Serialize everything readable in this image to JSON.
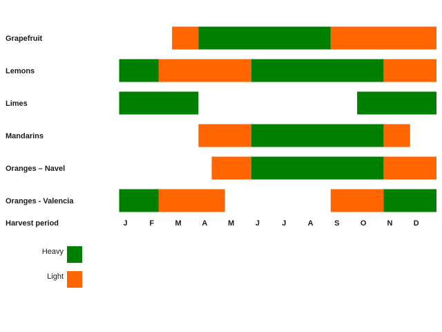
{
  "chart_data": {
    "type": "bar",
    "subtype": "gantt",
    "x_axis_label": "Harvest period",
    "months": [
      "J",
      "F",
      "M",
      "A",
      "M",
      "J",
      "J",
      "A",
      "S",
      "O",
      "N",
      "D"
    ],
    "xlim": [
      0,
      12
    ],
    "grid": false,
    "legend_position": "bottom-left",
    "legend": [
      {
        "key": "heavy",
        "label": "Heavy",
        "color": "#008000"
      },
      {
        "key": "light",
        "label": "Light",
        "color": "#ff6600"
      }
    ],
    "rows": [
      {
        "name": "Grapefruit",
        "segments": [
          {
            "start": 2.0,
            "end": 3.0,
            "level": "light"
          },
          {
            "start": 3.0,
            "end": 8.0,
            "level": "heavy"
          },
          {
            "start": 8.0,
            "end": 12.0,
            "level": "light"
          }
        ]
      },
      {
        "name": "Lemons",
        "segments": [
          {
            "start": 0.0,
            "end": 1.5,
            "level": "heavy"
          },
          {
            "start": 1.5,
            "end": 5.0,
            "level": "light"
          },
          {
            "start": 5.0,
            "end": 10.0,
            "level": "heavy"
          },
          {
            "start": 10.0,
            "end": 12.0,
            "level": "light"
          }
        ]
      },
      {
        "name": "Limes",
        "segments": [
          {
            "start": 0.0,
            "end": 3.0,
            "level": "heavy"
          },
          {
            "start": 9.0,
            "end": 12.0,
            "level": "heavy"
          }
        ]
      },
      {
        "name": "Mandarins",
        "segments": [
          {
            "start": 3.0,
            "end": 5.0,
            "level": "light"
          },
          {
            "start": 5.0,
            "end": 10.0,
            "level": "heavy"
          },
          {
            "start": 10.0,
            "end": 11.0,
            "level": "light"
          }
        ]
      },
      {
        "name": "Oranges – Navel",
        "segments": [
          {
            "start": 3.5,
            "end": 5.0,
            "level": "light"
          },
          {
            "start": 5.0,
            "end": 10.0,
            "level": "heavy"
          },
          {
            "start": 10.0,
            "end": 12.0,
            "level": "light"
          }
        ]
      },
      {
        "name": "Oranges - Valencia",
        "segments": [
          {
            "start": 0.0,
            "end": 1.5,
            "level": "heavy"
          },
          {
            "start": 1.5,
            "end": 4.0,
            "level": "light"
          },
          {
            "start": 8.0,
            "end": 10.0,
            "level": "light"
          },
          {
            "start": 10.0,
            "end": 12.0,
            "level": "heavy"
          }
        ]
      }
    ]
  }
}
